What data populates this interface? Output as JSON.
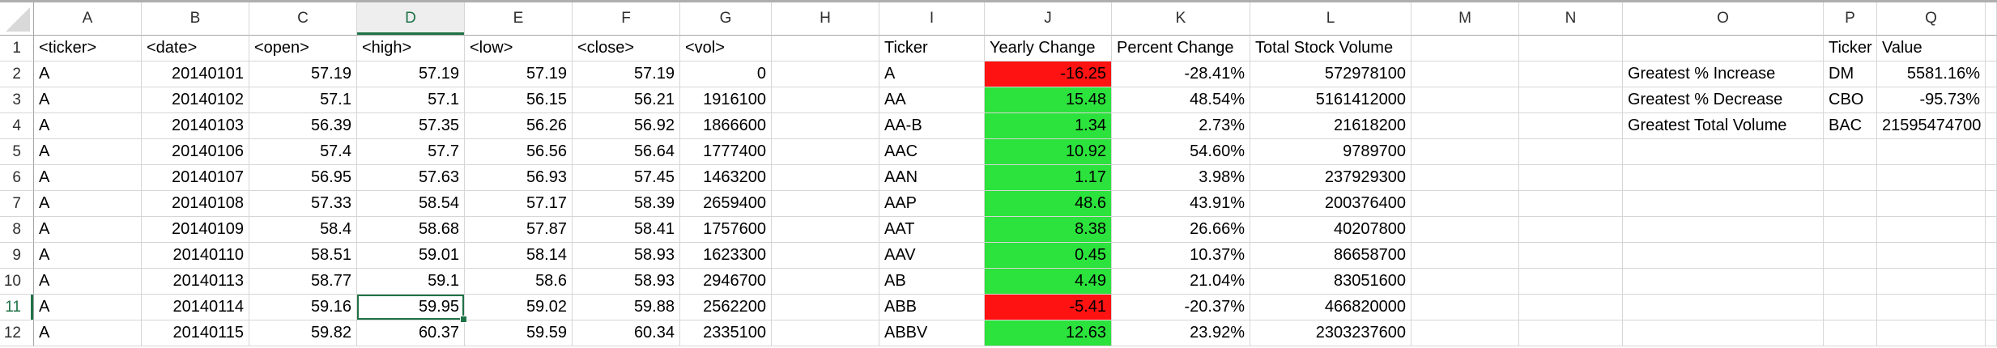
{
  "sheet": {
    "columns": [
      "A",
      "B",
      "C",
      "D",
      "E",
      "F",
      "G",
      "H",
      "I",
      "J",
      "K",
      "L",
      "M",
      "N",
      "O",
      "P",
      "Q"
    ],
    "selection": {
      "cell_ref": "D11",
      "column": "D",
      "row": "11",
      "selected_value": "59.95"
    },
    "colors": {
      "positive_fill": "#2CE23C",
      "negative_fill": "#FF1212",
      "selection_green": "#1F7246"
    },
    "rows": [
      {
        "n": "1",
        "cells": {
          "A": "<ticker>",
          "B": "<date>",
          "C": "<open>",
          "D": "<high>",
          "E": "<low>",
          "F": "<close>",
          "G": "<vol>",
          "I": "Ticker",
          "J": "Yearly Change",
          "K": "Percent Change",
          "L": "Total Stock Volume",
          "P": "Ticker",
          "Q": "Value"
        },
        "fills": {}
      },
      {
        "n": "2",
        "cells": {
          "A": "A",
          "B": "20140101",
          "C": "57.19",
          "D": "57.19",
          "E": "57.19",
          "F": "57.19",
          "G": "0",
          "I": "A",
          "J": "-16.25",
          "K": "-28.41%",
          "L": "572978100",
          "O": "Greatest % Increase",
          "P": "DM",
          "Q": "5581.16%"
        },
        "fills": {
          "J": "red"
        }
      },
      {
        "n": "3",
        "cells": {
          "A": "A",
          "B": "20140102",
          "C": "57.1",
          "D": "57.1",
          "E": "56.15",
          "F": "56.21",
          "G": "1916100",
          "I": "AA",
          "J": "15.48",
          "K": "48.54%",
          "L": "5161412000",
          "O": "Greatest % Decrease",
          "P": "CBO",
          "Q": "-95.73%"
        },
        "fills": {
          "J": "green"
        }
      },
      {
        "n": "4",
        "cells": {
          "A": "A",
          "B": "20140103",
          "C": "56.39",
          "D": "57.35",
          "E": "56.26",
          "F": "56.92",
          "G": "1866600",
          "I": "AA-B",
          "J": "1.34",
          "K": "2.73%",
          "L": "21618200",
          "O": "Greatest Total Volume",
          "P": "BAC",
          "Q": "21595474700"
        },
        "fills": {
          "J": "green"
        }
      },
      {
        "n": "5",
        "cells": {
          "A": "A",
          "B": "20140106",
          "C": "57.4",
          "D": "57.7",
          "E": "56.56",
          "F": "56.64",
          "G": "1777400",
          "I": "AAC",
          "J": "10.92",
          "K": "54.60%",
          "L": "9789700"
        },
        "fills": {
          "J": "green"
        }
      },
      {
        "n": "6",
        "cells": {
          "A": "A",
          "B": "20140107",
          "C": "56.95",
          "D": "57.63",
          "E": "56.93",
          "F": "57.45",
          "G": "1463200",
          "I": "AAN",
          "J": "1.17",
          "K": "3.98%",
          "L": "237929300"
        },
        "fills": {
          "J": "green"
        }
      },
      {
        "n": "7",
        "cells": {
          "A": "A",
          "B": "20140108",
          "C": "57.33",
          "D": "58.54",
          "E": "57.17",
          "F": "58.39",
          "G": "2659400",
          "I": "AAP",
          "J": "48.6",
          "K": "43.91%",
          "L": "200376400"
        },
        "fills": {
          "J": "green"
        }
      },
      {
        "n": "8",
        "cells": {
          "A": "A",
          "B": "20140109",
          "C": "58.4",
          "D": "58.68",
          "E": "57.87",
          "F": "58.41",
          "G": "1757600",
          "I": "AAT",
          "J": "8.38",
          "K": "26.66%",
          "L": "40207800"
        },
        "fills": {
          "J": "green"
        }
      },
      {
        "n": "9",
        "cells": {
          "A": "A",
          "B": "20140110",
          "C": "58.51",
          "D": "59.01",
          "E": "58.14",
          "F": "58.93",
          "G": "1623300",
          "I": "AAV",
          "J": "0.45",
          "K": "10.37%",
          "L": "86658700"
        },
        "fills": {
          "J": "green"
        }
      },
      {
        "n": "10",
        "cells": {
          "A": "A",
          "B": "20140113",
          "C": "58.77",
          "D": "59.1",
          "E": "58.6",
          "F": "58.93",
          "G": "2946700",
          "I": "AB",
          "J": "4.49",
          "K": "21.04%",
          "L": "83051600"
        },
        "fills": {
          "J": "green"
        }
      },
      {
        "n": "11",
        "cells": {
          "A": "A",
          "B": "20140114",
          "C": "59.16",
          "D": "59.95",
          "E": "59.02",
          "F": "59.88",
          "G": "2562200",
          "I": "ABB",
          "J": "-5.41",
          "K": "-20.37%",
          "L": "466820000"
        },
        "fills": {
          "J": "red"
        }
      },
      {
        "n": "12",
        "cells": {
          "A": "A",
          "B": "20140115",
          "C": "59.82",
          "D": "60.37",
          "E": "59.59",
          "F": "60.34",
          "G": "2335100",
          "I": "ABBV",
          "J": "12.63",
          "K": "23.92%",
          "L": "2303237600"
        },
        "fills": {
          "J": "green"
        }
      }
    ]
  }
}
